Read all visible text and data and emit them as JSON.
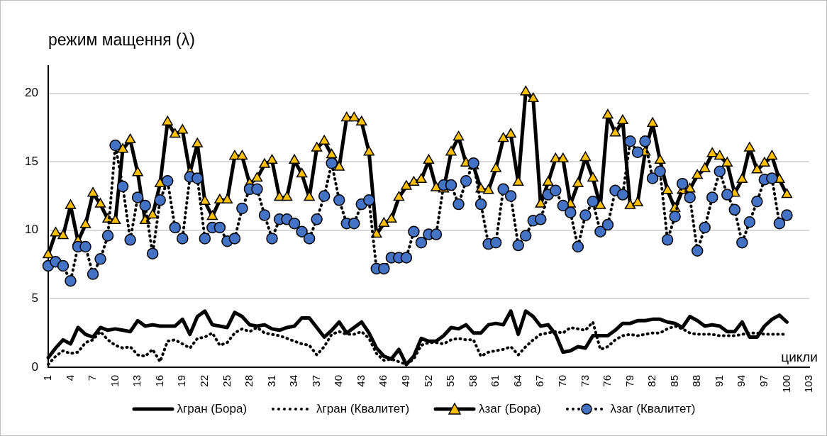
{
  "chart_data": {
    "type": "line",
    "ylabel": "режим мащення (λ)",
    "xlabel": "цикли",
    "categories": [
      "1",
      null,
      null,
      "4",
      null,
      null,
      "7",
      null,
      null,
      "10",
      null,
      null,
      "13",
      null,
      null,
      "16",
      null,
      null,
      "19",
      null,
      null,
      "22",
      null,
      null,
      "25",
      null,
      null,
      "28",
      null,
      null,
      "31",
      null,
      null,
      "34",
      null,
      null,
      "37",
      null,
      null,
      "40",
      null,
      null,
      "43",
      null,
      null,
      "46",
      null,
      null,
      "49",
      null,
      null,
      "52",
      null,
      null,
      "55",
      null,
      null,
      "58",
      null,
      null,
      "61",
      null,
      null,
      "64",
      null,
      null,
      "67",
      null,
      null,
      "70",
      null,
      null,
      "73",
      null,
      null,
      "76",
      null,
      null,
      "79",
      null,
      null,
      "82",
      null,
      null,
      "85",
      null,
      null,
      "88",
      null,
      null,
      "91",
      null,
      null,
      "94",
      null,
      null,
      "97",
      null,
      null,
      "100",
      null,
      null,
      "103"
    ],
    "ylim": [
      0,
      22
    ],
    "yticks": [
      0,
      5,
      10,
      15,
      20
    ],
    "grid": "y",
    "legend": "bottom",
    "series": [
      {
        "name": "λгран (Бора)",
        "color": "#000000",
        "marker": "none",
        "line_style": "solid",
        "values": [
          0.7,
          1.4,
          2.0,
          1.7,
          2.9,
          2.4,
          2.2,
          2.9,
          2.7,
          2.8,
          2.7,
          2.6,
          3.4,
          3.0,
          3.1,
          3.0,
          3.0,
          3.0,
          3.5,
          2.4,
          3.7,
          4.1,
          3.1,
          3.0,
          2.9,
          4.0,
          3.7,
          3.1,
          3.0,
          3.1,
          2.8,
          2.7,
          2.9,
          3.0,
          3.6,
          3.6,
          2.9,
          2.2,
          2.7,
          3.3,
          2.5,
          2.9,
          3.3,
          2.5,
          1.4,
          0.8,
          0.6,
          1.3,
          0.2,
          0.8,
          2.1,
          1.9,
          1.9,
          2.3,
          2.9,
          2.8,
          3.1,
          2.5,
          2.5,
          3.1,
          3.2,
          3.1,
          4.1,
          2.4,
          4.1,
          3.7,
          3.0,
          3.1,
          2.4,
          1.1,
          1.2,
          1.5,
          1.4,
          2.3,
          2.3,
          2.3,
          2.7,
          3.2,
          3.2,
          3.4,
          3.4,
          3.5,
          3.5,
          3.3,
          3.2,
          2.9,
          3.7,
          3.4,
          3.0,
          3.1,
          3.0,
          2.6,
          2.6,
          3.3,
          2.2,
          2.2,
          3.0,
          3.5,
          3.8,
          3.3,
          null,
          null,
          null
        ]
      },
      {
        "name": "λгран (Квалитет)",
        "color": "#000000",
        "marker": "none",
        "line_style": "dotted",
        "values": [
          0.2,
          0.8,
          1.2,
          1.0,
          1.1,
          1.8,
          2.0,
          2.6,
          2.0,
          1.6,
          1.4,
          1.5,
          0.9,
          0.8,
          1.3,
          0.4,
          1.9,
          2.0,
          1.7,
          1.4,
          2.1,
          2.2,
          2.5,
          1.6,
          1.8,
          2.5,
          2.8,
          2.6,
          2.9,
          2.5,
          2.4,
          2.3,
          2.1,
          1.9,
          1.7,
          1.6,
          0.9,
          1.5,
          2.4,
          2.6,
          2.4,
          2.4,
          2.6,
          2.1,
          1.0,
          0.5,
          0.6,
          0.4,
          0.2,
          0.6,
          1.6,
          1.8,
          1.8,
          1.7,
          2.0,
          2.1,
          2.0,
          2.0,
          0.8,
          1.1,
          1.2,
          1.3,
          1.5,
          0.9,
          1.5,
          2.0,
          2.4,
          2.5,
          2.6,
          2.5,
          2.9,
          2.8,
          2.7,
          3.3,
          1.3,
          1.5,
          2.0,
          2.3,
          2.4,
          2.3,
          2.4,
          2.5,
          2.5,
          2.8,
          3.0,
          2.8,
          2.5,
          2.4,
          2.4,
          2.4,
          2.3,
          2.3,
          2.3,
          2.4,
          2.5,
          2.5,
          2.4,
          2.4,
          2.4,
          2.4,
          null,
          null,
          null
        ]
      },
      {
        "name": "λзаг (Бора)",
        "color": "#ffc000",
        "marker": "triangle",
        "line_style": "solid",
        "values": [
          8.2,
          9.8,
          9.6,
          11.8,
          9.2,
          10.4,
          12.7,
          11.9,
          10.8,
          10.7,
          15.9,
          16.6,
          14.2,
          10.7,
          11.1,
          13.4,
          17.9,
          17.0,
          17.3,
          14.2,
          16.3,
          12.1,
          11.0,
          12.2,
          12.2,
          15.4,
          15.4,
          13.4,
          13.8,
          14.8,
          15.1,
          12.4,
          12.4,
          15.1,
          14.1,
          12.4,
          16.0,
          16.5,
          15.5,
          14.6,
          18.2,
          18.2,
          17.9,
          15.7,
          9.7,
          10.5,
          10.8,
          12.4,
          13.2,
          13.5,
          13.7,
          15.1,
          13.1,
          13.0,
          15.7,
          16.8,
          14.9,
          14.7,
          13.0,
          12.9,
          14.5,
          16.7,
          17.0,
          13.5,
          20.1,
          19.6,
          11.9,
          13.5,
          15.2,
          15.2,
          11.9,
          13.4,
          15.3,
          13.8,
          11.8,
          18.4,
          17.1,
          18.0,
          11.8,
          12.0,
          15.7,
          17.8,
          15.1,
          12.9,
          11.6,
          12.9,
          13.0,
          14.0,
          14.5,
          15.6,
          15.4,
          14.9,
          12.7,
          13.7,
          16.0,
          14.4,
          14.9,
          15.4,
          13.7,
          12.6,
          null,
          null,
          null
        ]
      },
      {
        "name": "λзаг (Квалитет)",
        "color": "#4472c4",
        "marker": "circle",
        "line_style": "dotted",
        "values": [
          7.4,
          7.7,
          7.4,
          6.3,
          8.8,
          8.8,
          6.8,
          7.9,
          9.6,
          16.2,
          13.2,
          9.3,
          12.4,
          11.8,
          8.3,
          12.2,
          13.6,
          10.2,
          9.4,
          13.9,
          13.8,
          9.4,
          10.2,
          10.2,
          9.2,
          9.4,
          11.6,
          13.0,
          13.0,
          11.1,
          9.4,
          10.8,
          10.8,
          10.5,
          9.9,
          9.4,
          10.8,
          12.5,
          14.9,
          12.2,
          10.5,
          10.5,
          11.9,
          12.2,
          7.2,
          7.2,
          8.0,
          8.0,
          8.0,
          9.9,
          9.1,
          9.7,
          9.7,
          13.3,
          13.3,
          11.9,
          13.6,
          14.9,
          11.9,
          9.0,
          9.1,
          13.0,
          12.5,
          8.9,
          9.6,
          10.7,
          10.8,
          12.6,
          12.9,
          11.8,
          11.3,
          8.8,
          11.1,
          12.1,
          9.9,
          10.4,
          12.9,
          12.6,
          16.5,
          15.7,
          16.5,
          13.8,
          14.3,
          9.3,
          11.0,
          13.4,
          12.4,
          8.5,
          10.2,
          12.4,
          14.3,
          12.6,
          11.5,
          9.1,
          10.6,
          12.1,
          13.7,
          13.8,
          10.5,
          11.1,
          null,
          null,
          null
        ]
      }
    ]
  }
}
